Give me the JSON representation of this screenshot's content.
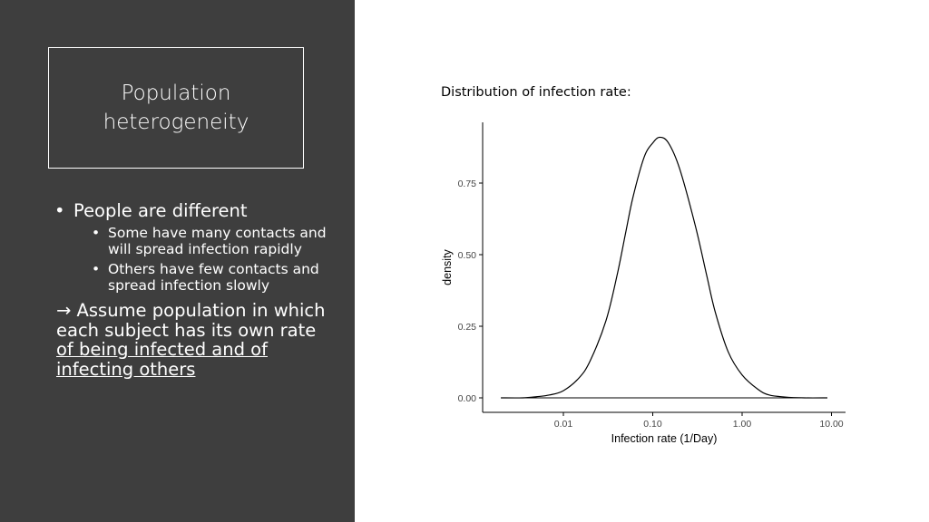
{
  "slide": {
    "title": "Population heterogeneity",
    "bullets": {
      "main": "People are different",
      "sub": [
        "Some have many contacts and will spread infection rapidly",
        "Others have few contacts and spread infection slowly"
      ],
      "arrow": "→",
      "conclusion_plain": "Assume population in which each subject has its own rate",
      "conclusion_underlined": "of being infected and of infecting others"
    },
    "chart_caption": "Distribution of infection rate:"
  },
  "chart_data": {
    "type": "line",
    "xlabel": "Infection rate (1/Day)",
    "ylabel": "density",
    "x_scale": "log10",
    "xlim": [
      0.002,
      10
    ],
    "ylim": [
      0,
      0.92
    ],
    "x_ticks": [
      0.01,
      0.1,
      1.0,
      10.0
    ],
    "x_tick_labels": [
      "0.01",
      "0.10",
      "1.00",
      "10.00"
    ],
    "y_ticks": [
      0.0,
      0.25,
      0.5,
      0.75
    ],
    "y_tick_labels": [
      "0.00",
      "0.25",
      "0.50",
      "0.75"
    ],
    "grid": false,
    "series": [
      {
        "x": [
          0.002,
          0.0035,
          0.005,
          0.007,
          0.01,
          0.015,
          0.02,
          0.03,
          0.04,
          0.05,
          0.06,
          0.08,
          0.1,
          0.12,
          0.15,
          0.2,
          0.3,
          0.4,
          0.5,
          0.7,
          1.0,
          1.5,
          2.0,
          3.0,
          5.0,
          9.0
        ],
        "y": [
          0.0,
          0.0,
          0.004,
          0.01,
          0.025,
          0.07,
          0.13,
          0.27,
          0.43,
          0.58,
          0.7,
          0.84,
          0.89,
          0.91,
          0.89,
          0.8,
          0.6,
          0.43,
          0.3,
          0.16,
          0.08,
          0.03,
          0.01,
          0.003,
          0.0,
          0.0
        ]
      }
    ]
  }
}
